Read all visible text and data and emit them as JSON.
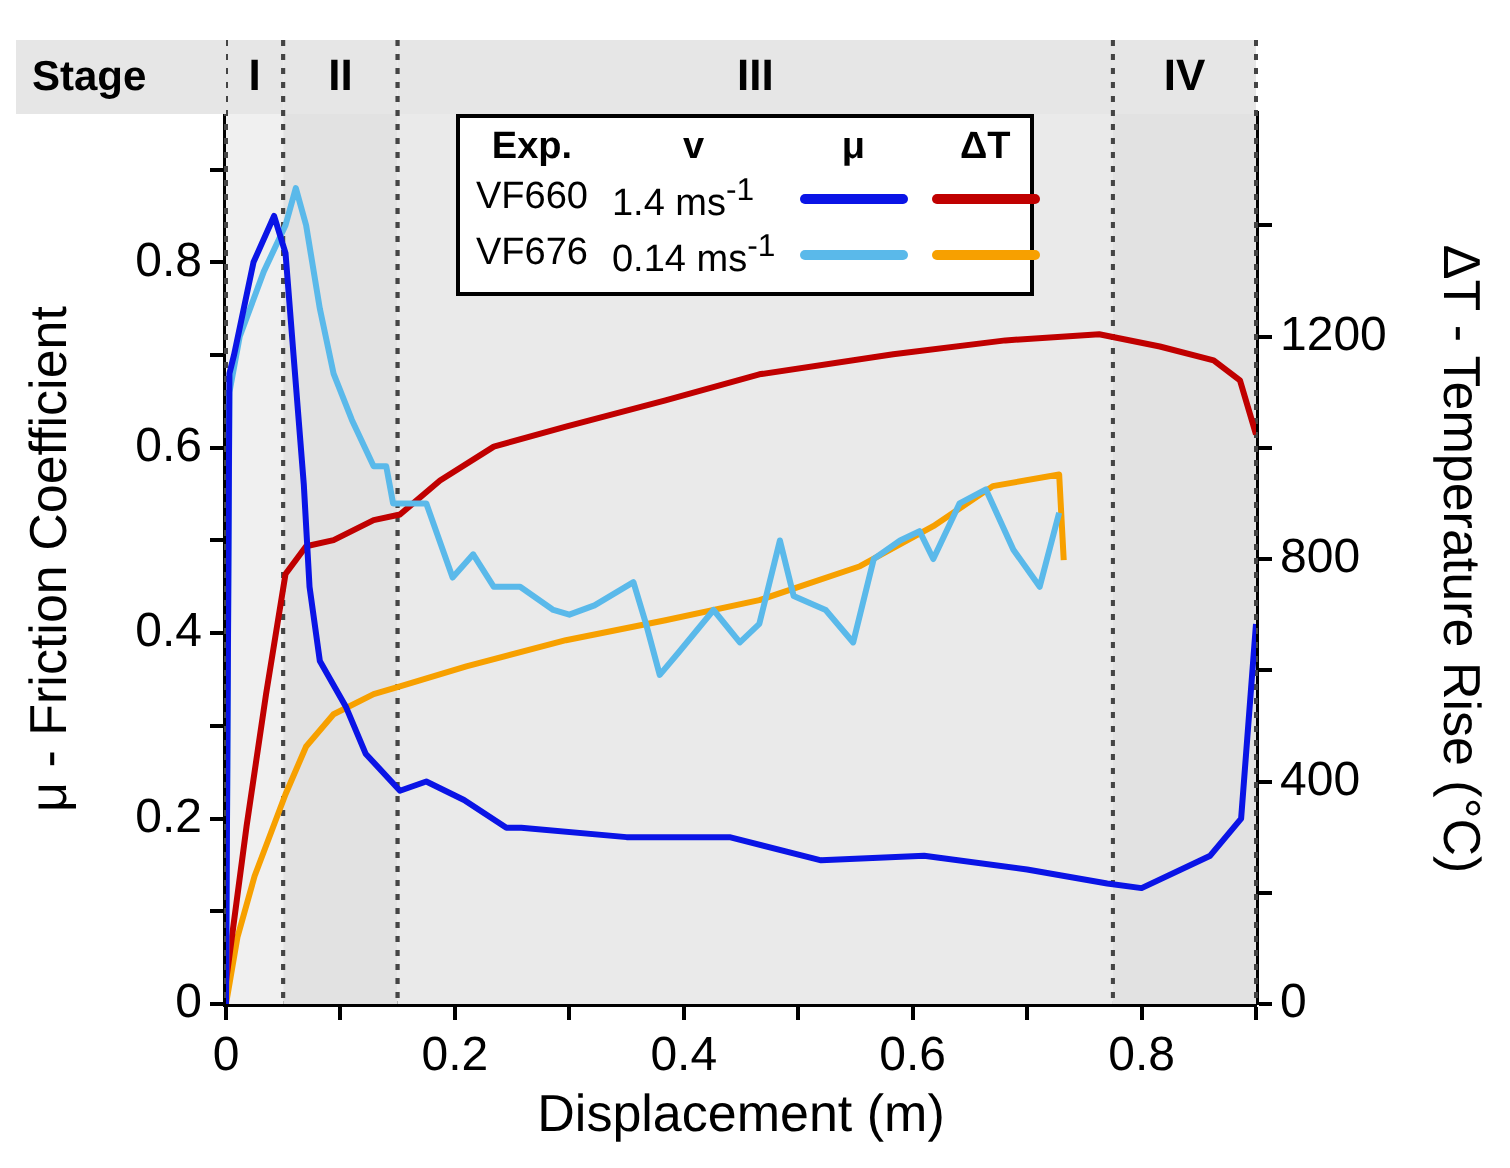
{
  "chart_data": {
    "type": "line",
    "xlabel": "Displacement (m)",
    "ylabel": "μ - Friction Coefficient",
    "y2label": "ΔT - Temperature Rise (°C)",
    "annotations": [
      "Stage",
      "Exp.",
      "v",
      "μ",
      "ΔT",
      "VF660",
      "1.4 ms$^{-1}$",
      "VF676",
      "0.14 ms$^{-1}$"
    ],
    "xlim": [
      0,
      0.9
    ],
    "xticks": [
      0,
      {
        "value": 0.1,
        "label": null
      },
      0.2,
      {
        "value": 0.3,
        "label": null
      },
      0.4,
      {
        "value": 0.5,
        "label": null
      },
      0.6,
      {
        "value": 0.7,
        "label": null
      },
      0.8,
      {
        "value": 0.9,
        "label": null
      }
    ],
    "ylim": [
      0,
      0.96
    ],
    "yticks": [
      0,
      {
        "value": 0.1,
        "label": null
      },
      0.2,
      {
        "value": 0.3,
        "label": null
      },
      0.4,
      {
        "value": 0.5,
        "label": null
      },
      0.6,
      {
        "value": 0.7,
        "label": null
      },
      0.8,
      {
        "value": 0.9,
        "label": null
      }
    ],
    "y2lim": [
      0,
      1600
    ],
    "y2ticks": [
      0,
      {
        "value": 200,
        "label": null
      },
      400,
      {
        "value": 600,
        "label": null
      },
      800,
      {
        "value": 1000,
        "label": null
      },
      1200,
      {
        "value": 1400,
        "label": null
      }
    ],
    "legend": "top",
    "grid": false,
    "marker": "none",
    "bands": [
      {
        "axis": "x",
        "from": 0,
        "to": 0.05,
        "label": "I",
        "color": "#f0f0f0"
      },
      {
        "axis": "x",
        "from": 0.05,
        "to": 0.15,
        "label": "II",
        "color": "#e2e2e2"
      },
      {
        "axis": "x",
        "from": 0.15,
        "to": 0.775,
        "label": "III",
        "color": "#eaeaea"
      },
      {
        "axis": "x",
        "from": 0.775,
        "to": 0.9,
        "label": "IV",
        "color": "#e2e2e2"
      }
    ],
    "series": [
      {
        "color": "#0a14e6",
        "axis": "y",
        "x": [
          0,
          0.003,
          0.007,
          0.024,
          0.042,
          0.052,
          0.059,
          0.068,
          0.073,
          0.082,
          0.105,
          0.122,
          0.152,
          0.175,
          0.208,
          0.245,
          0.258,
          0.35,
          0.44,
          0.52,
          0.61,
          0.7,
          0.77,
          0.8,
          0.86,
          0.887,
          0.9
        ],
        "values": [
          0,
          0.68,
          0.7,
          0.8,
          0.85,
          0.81,
          0.7,
          0.56,
          0.45,
          0.37,
          0.32,
          0.27,
          0.23,
          0.24,
          0.22,
          0.19,
          0.19,
          0.18,
          0.18,
          0.155,
          0.16,
          0.145,
          0.13,
          0.125,
          0.16,
          0.2,
          0.41
        ]
      },
      {
        "color": "#5ab9ea",
        "axis": "y",
        "x": [
          0,
          0.003,
          0.012,
          0.033,
          0.052,
          0.061,
          0.07,
          0.082,
          0.094,
          0.11,
          0.129,
          0.14,
          0.146,
          0.175,
          0.198,
          0.216,
          0.234,
          0.257,
          0.286,
          0.3,
          0.322,
          0.356,
          0.367,
          0.379,
          0.396,
          0.426,
          0.449,
          0.466,
          0.484,
          0.496,
          0.524,
          0.548,
          0.566,
          0.589,
          0.606,
          0.618,
          0.641,
          0.664,
          0.688,
          0.711,
          0.728
        ],
        "values": [
          0,
          0.66,
          0.72,
          0.79,
          0.84,
          0.88,
          0.84,
          0.75,
          0.68,
          0.63,
          0.58,
          0.58,
          0.54,
          0.54,
          0.46,
          0.485,
          0.45,
          0.45,
          0.425,
          0.42,
          0.43,
          0.455,
          0.41,
          0.355,
          0.38,
          0.425,
          0.39,
          0.41,
          0.5,
          0.44,
          0.425,
          0.39,
          0.48,
          0.5,
          0.51,
          0.48,
          0.54,
          0.555,
          0.49,
          0.45,
          0.53
        ]
      },
      {
        "color": "#c00000",
        "axis": "y2",
        "x": [
          0,
          0.018,
          0.035,
          0.052,
          0.07,
          0.094,
          0.129,
          0.152,
          0.187,
          0.234,
          0.297,
          0.384,
          0.466,
          0.583,
          0.681,
          0.763,
          0.816,
          0.863,
          0.886,
          0.9
        ],
        "values": [
          40,
          320,
          557,
          773,
          823,
          834,
          870,
          880,
          941,
          1002,
          1038,
          1085,
          1132,
          1168,
          1193,
          1204,
          1182,
          1157,
          1121,
          1024
        ]
      },
      {
        "color": "#f7a000",
        "axis": "y2",
        "x": [
          0,
          0.01,
          0.025,
          0.052,
          0.07,
          0.094,
          0.129,
          0.152,
          0.21,
          0.297,
          0.384,
          0.466,
          0.554,
          0.618,
          0.67,
          0.728,
          0.732
        ],
        "values": [
          0,
          120,
          230,
          377,
          463,
          521,
          557,
          571,
          607,
          654,
          690,
          726,
          787,
          859,
          931,
          952,
          798
        ]
      }
    ]
  }
}
